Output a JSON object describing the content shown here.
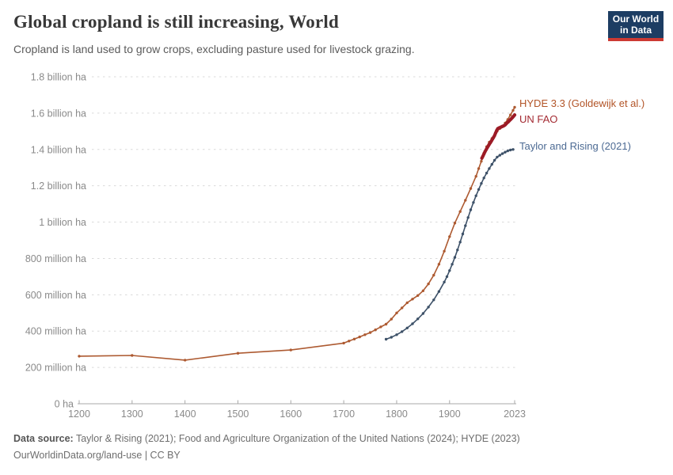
{
  "header": {
    "title": "Global cropland is still increasing, World",
    "subtitle": "Cropland is land used to grow crops, excluding pasture used for livestock grazing.",
    "logo": {
      "line1": "Our World",
      "line2": "in Data",
      "bg_color": "#1d3d63",
      "bar_color": "#cc3a33"
    }
  },
  "footer": {
    "source_label": "Data source:",
    "source_text": " Taylor & Rising (2021); Food and Agriculture Organization of the United Nations (2024); HYDE (2023)",
    "license_text": "OurWorldinData.org/land-use | CC BY"
  },
  "chart_data": {
    "type": "line",
    "title": "Global cropland is still increasing, World",
    "xlabel": "",
    "ylabel": "",
    "unit": "million ha",
    "x_range": [
      1200,
      2023
    ],
    "y_range": [
      0,
      1800
    ],
    "grid": "horizontal-dashed",
    "grid_color": "#d9d9d9",
    "axis_color": "#a8a8a8",
    "tick_label_color": "#8a8a8a",
    "legend_position": "line-end-labels-right",
    "y_ticks": [
      {
        "value": 1800,
        "label": "1.8 billion ha"
      },
      {
        "value": 1600,
        "label": "1.6 billion ha"
      },
      {
        "value": 1400,
        "label": "1.4 billion ha"
      },
      {
        "value": 1200,
        "label": "1.2 billion ha"
      },
      {
        "value": 1000,
        "label": "1 billion ha"
      },
      {
        "value": 800,
        "label": "800 million ha"
      },
      {
        "value": 600,
        "label": "600 million ha"
      },
      {
        "value": 400,
        "label": "400 million ha"
      },
      {
        "value": 200,
        "label": "200 million ha"
      },
      {
        "value": 0,
        "label": "0 ha"
      }
    ],
    "x_ticks": [
      {
        "year": 1200,
        "label": "1200"
      },
      {
        "year": 1300,
        "label": "1300"
      },
      {
        "year": 1400,
        "label": "1400"
      },
      {
        "year": 1500,
        "label": "1500"
      },
      {
        "year": 1600,
        "label": "1600"
      },
      {
        "year": 1700,
        "label": "1700"
      },
      {
        "year": 1800,
        "label": "1800"
      },
      {
        "year": 1900,
        "label": "1900"
      },
      {
        "year": 2023,
        "label": "2023"
      }
    ],
    "series": [
      {
        "id": "hyde",
        "label": "HYDE 3.3 (Goldewijk et al.)",
        "color": "#ad5a31",
        "label_color": "#b25427",
        "line_width": 1.6,
        "marker_radius": 1.7,
        "label_dy": -5,
        "points": [
          [
            1200,
            262
          ],
          [
            1300,
            266
          ],
          [
            1400,
            240
          ],
          [
            1500,
            278
          ],
          [
            1600,
            296
          ],
          [
            1700,
            334
          ],
          [
            1710,
            345
          ],
          [
            1720,
            356
          ],
          [
            1730,
            368
          ],
          [
            1740,
            380
          ],
          [
            1750,
            392
          ],
          [
            1760,
            407
          ],
          [
            1770,
            423
          ],
          [
            1780,
            438
          ],
          [
            1790,
            466
          ],
          [
            1800,
            500
          ],
          [
            1810,
            528
          ],
          [
            1820,
            556
          ],
          [
            1830,
            576
          ],
          [
            1840,
            596
          ],
          [
            1850,
            622
          ],
          [
            1860,
            660
          ],
          [
            1870,
            708
          ],
          [
            1880,
            768
          ],
          [
            1890,
            840
          ],
          [
            1900,
            920
          ],
          [
            1910,
            995
          ],
          [
            1920,
            1058
          ],
          [
            1930,
            1120
          ],
          [
            1940,
            1185
          ],
          [
            1950,
            1252
          ],
          [
            1955,
            1295
          ],
          [
            1960,
            1335
          ],
          [
            1965,
            1380
          ],
          [
            1970,
            1415
          ],
          [
            1975,
            1440
          ],
          [
            1980,
            1460
          ],
          [
            1985,
            1475
          ],
          [
            1990,
            1500
          ],
          [
            1995,
            1515
          ],
          [
            2000,
            1525
          ],
          [
            2005,
            1545
          ],
          [
            2010,
            1565
          ],
          [
            2015,
            1590
          ],
          [
            2020,
            1615
          ],
          [
            2023,
            1632
          ]
        ]
      },
      {
        "id": "taylor-rising",
        "label": "Taylor and Rising (2021)",
        "color": "#3d5168",
        "label_color": "#4c6a93",
        "line_width": 1.6,
        "marker_radius": 1.7,
        "label_dy": -4,
        "points": [
          [
            1780,
            355
          ],
          [
            1790,
            366
          ],
          [
            1800,
            380
          ],
          [
            1810,
            397
          ],
          [
            1820,
            417
          ],
          [
            1830,
            440
          ],
          [
            1840,
            467
          ],
          [
            1850,
            497
          ],
          [
            1860,
            532
          ],
          [
            1870,
            572
          ],
          [
            1880,
            618
          ],
          [
            1890,
            670
          ],
          [
            1895,
            700
          ],
          [
            1900,
            733
          ],
          [
            1905,
            768
          ],
          [
            1910,
            806
          ],
          [
            1915,
            847
          ],
          [
            1920,
            890
          ],
          [
            1925,
            935
          ],
          [
            1930,
            980
          ],
          [
            1935,
            1025
          ],
          [
            1940,
            1068
          ],
          [
            1945,
            1108
          ],
          [
            1950,
            1145
          ],
          [
            1955,
            1180
          ],
          [
            1960,
            1213
          ],
          [
            1965,
            1243
          ],
          [
            1970,
            1270
          ],
          [
            1975,
            1295
          ],
          [
            1980,
            1318
          ],
          [
            1985,
            1340
          ],
          [
            1990,
            1358
          ],
          [
            1995,
            1368
          ],
          [
            2000,
            1377
          ],
          [
            2005,
            1385
          ],
          [
            2010,
            1392
          ],
          [
            2015,
            1397
          ],
          [
            2020,
            1400
          ]
        ]
      },
      {
        "id": "un-fao",
        "label": "UN FAO",
        "color": "#9c1b26",
        "label_color": "#a42b33",
        "line_width": 4,
        "marker_radius": 2.1,
        "label_dy": 6,
        "points": [
          [
            1961,
            1352
          ],
          [
            1963,
            1363
          ],
          [
            1965,
            1375
          ],
          [
            1967,
            1388
          ],
          [
            1969,
            1398
          ],
          [
            1971,
            1408
          ],
          [
            1973,
            1418
          ],
          [
            1975,
            1428
          ],
          [
            1977,
            1437
          ],
          [
            1979,
            1446
          ],
          [
            1981,
            1456
          ],
          [
            1983,
            1466
          ],
          [
            1985,
            1476
          ],
          [
            1987,
            1490
          ],
          [
            1989,
            1504
          ],
          [
            1991,
            1514
          ],
          [
            1993,
            1518
          ],
          [
            1995,
            1520
          ],
          [
            1997,
            1523
          ],
          [
            1999,
            1526
          ],
          [
            2001,
            1528
          ],
          [
            2003,
            1531
          ],
          [
            2005,
            1535
          ],
          [
            2007,
            1541
          ],
          [
            2009,
            1547
          ],
          [
            2011,
            1552
          ],
          [
            2013,
            1558
          ],
          [
            2015,
            1564
          ],
          [
            2017,
            1570
          ],
          [
            2019,
            1576
          ],
          [
            2021,
            1583
          ],
          [
            2023,
            1590
          ]
        ]
      }
    ]
  }
}
